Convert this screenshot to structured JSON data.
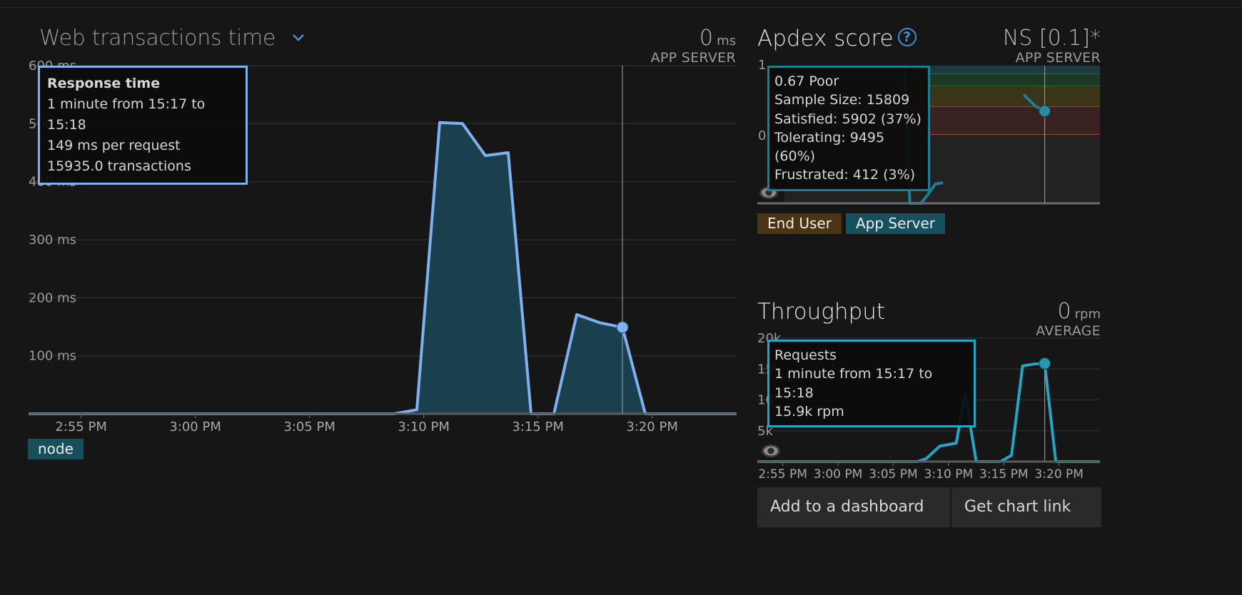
{
  "web_panel": {
    "title": "Web transactions time",
    "value": "0",
    "unit": "ms",
    "caption": "APP SERVER",
    "legend_label": "node",
    "tooltip": {
      "title": "Response time",
      "line1": "1 minute from 15:17 to 15:18",
      "line2": "149 ms per request",
      "line3": "15935.0 transactions"
    }
  },
  "apdex_panel": {
    "title": "Apdex score",
    "value": "NS [0.1]*",
    "caption": "APP SERVER",
    "ytick_top": "1",
    "ytick_mid": "0.",
    "tooltip": {
      "line1": "0.67 Poor",
      "line2": "Sample Size: 15809",
      "line3": "Satisfied: 5902 (37%)",
      "line4": "Tolerating: 9495 (60%)",
      "line5": "Frustrated: 412 (3%)"
    },
    "buttons": {
      "end_user": "End User",
      "app_server": "App Server"
    }
  },
  "throughput_panel": {
    "title": "Throughput",
    "value": "0",
    "unit": "rpm",
    "caption": "AVERAGE",
    "yticks": [
      "20k",
      "15",
      "10",
      "5k"
    ],
    "tooltip": {
      "title": "Requests",
      "line1": "1 minute from 15:17 to 15:18",
      "line2": "15.9k rpm"
    }
  },
  "actions": {
    "add_dashboard": "Add to a dashboard",
    "chart_link": "Get chart link"
  },
  "colors": {
    "response_line": "#7fb0f0",
    "response_fill": "#19424f",
    "apdex_line": "#1e7f94",
    "throughput_line": "#27a3c4",
    "end_user_badge": "#4a3413",
    "app_server_badge": "#14505e",
    "node_badge": "#17505b"
  },
  "chart_data": [
    {
      "type": "area",
      "title": "Web transactions time",
      "yticks": [
        "600 ms",
        "500 ms",
        "400 ms",
        "300 ms",
        "200 ms",
        "100 ms"
      ],
      "xticks": [
        "2:55 PM",
        "3:00 PM",
        "3:05 PM",
        "3:10 PM",
        "3:15 PM",
        "3:20 PM"
      ],
      "ylim": [
        0,
        600
      ],
      "series": [
        {
          "name": "node",
          "x_minutes": [
            -2.3,
            2,
            7,
            13.7,
            14.7,
            15.7,
            16.7,
            17.7,
            18.7,
            19.7,
            20.7,
            21.7,
            22.7,
            23.7,
            24.7,
            25.7,
            28.7
          ],
          "values": [
            0,
            0,
            0,
            0,
            7,
            502,
            500,
            445,
            450,
            0,
            0,
            171,
            157,
            149,
            0,
            0,
            0
          ]
        }
      ],
      "marker": {
        "x_minutes": 23.7,
        "value": 149
      }
    },
    {
      "type": "line",
      "title": "Apdex score",
      "ylim": [
        0,
        1
      ],
      "xticks": [],
      "series": [
        {
          "name": "App Server",
          "x_minutes": [
            11,
            11.5,
            12.5,
            13.1,
            13.8,
            14.5
          ],
          "values": [
            1.0,
            0.0,
            0.0,
            0.06,
            0.14,
            0.15
          ]
        },
        {
          "name": "App Server",
          "x_minutes": [
            21.8,
            22.8,
            23.7
          ],
          "values": [
            0.79,
            0.71,
            0.67
          ]
        }
      ],
      "marker": {
        "x_minutes": 23.7,
        "value": 0.67
      }
    },
    {
      "type": "line",
      "title": "Throughput",
      "ylim": [
        0,
        20000
      ],
      "xticks": [
        "2:55 PM",
        "3:00 PM",
        "3:05 PM",
        "3:10 PM",
        "3:15 PM",
        "3:20 PM"
      ],
      "series": [
        {
          "name": "Requests",
          "x_minutes": [
            -2.3,
            10,
            11.5,
            12.2,
            13,
            14.2,
            15.7,
            16.5,
            17.5,
            18.5,
            19.7,
            20.7,
            21.7,
            22.7,
            23.7,
            24.7,
            25.7,
            28.7
          ],
          "values": [
            0,
            0,
            0,
            0,
            500,
            2500,
            3000,
            11000,
            0,
            0,
            0,
            1000,
            15500,
            15800,
            15900,
            0,
            0,
            0
          ]
        }
      ],
      "marker": {
        "x_minutes": 23.7,
        "value": 15900
      }
    }
  ]
}
